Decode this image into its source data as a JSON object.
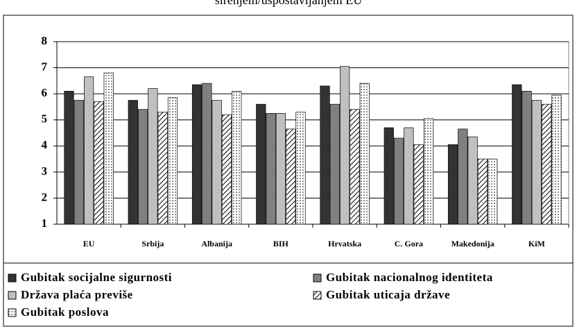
{
  "chart_data": {
    "type": "bar",
    "title": "širenjem/uspostavljanjem EU",
    "categories": [
      "EU",
      "Srbija",
      "Albanija",
      "BIH",
      "Hrvatska",
      "C. Gora",
      "Makedonija",
      "KiM"
    ],
    "series": [
      {
        "name": "Gubitak socijalne sigurnosti",
        "color": "#333333",
        "values": [
          6.1,
          5.75,
          6.35,
          5.6,
          6.3,
          4.7,
          4.05,
          6.35
        ]
      },
      {
        "name": "Gubitak nacionalnog identiteta",
        "color": "#808080",
        "values": [
          5.75,
          5.4,
          6.4,
          5.25,
          5.6,
          4.3,
          4.65,
          6.1
        ]
      },
      {
        "name": "Država plaća previše",
        "color": "#c0c0c0",
        "values": [
          6.65,
          6.2,
          5.75,
          5.25,
          7.05,
          4.7,
          4.35,
          5.75
        ]
      },
      {
        "name": "Gubitak uticaja države",
        "color": "#ffffff",
        "pattern": "hatch",
        "values": [
          5.7,
          5.3,
          5.2,
          4.65,
          5.4,
          4.05,
          3.5,
          5.6
        ]
      },
      {
        "name": "Gubitak poslova",
        "color": "#ffffff",
        "pattern": "dots",
        "values": [
          6.8,
          5.85,
          6.1,
          5.3,
          6.4,
          5.05,
          3.5,
          5.95
        ]
      }
    ],
    "ylim": [
      1,
      8
    ],
    "yticks": [
      1,
      2,
      3,
      4,
      5,
      6,
      7,
      8
    ],
    "grid": true
  }
}
